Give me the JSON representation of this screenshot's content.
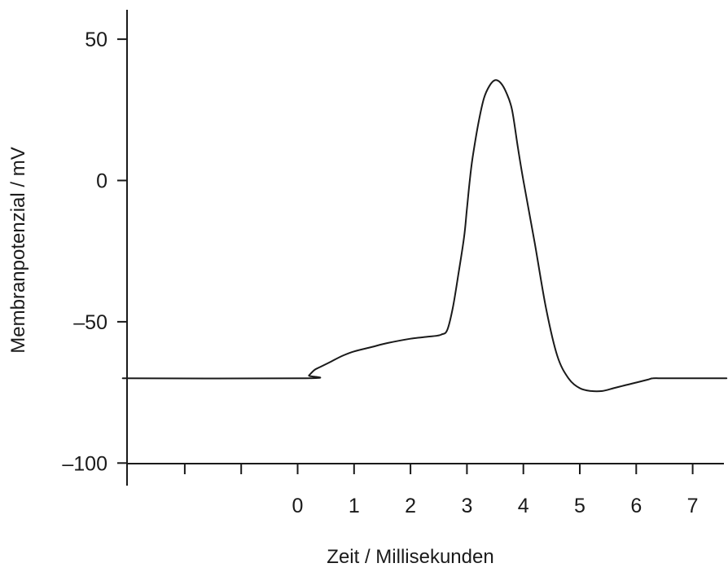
{
  "chart_data": {
    "type": "line",
    "title": "",
    "xlabel": "Zeit / Millisekunden",
    "ylabel": "Membranpotenzial / mV",
    "xlim": [
      -3.1,
      7.6
    ],
    "ylim": [
      -100,
      60
    ],
    "grid": false,
    "legend": "none",
    "x_ticks": [
      -2,
      -1,
      0,
      1,
      2,
      3,
      4,
      5,
      6,
      7
    ],
    "x_tick_labels": [
      "",
      "",
      "0",
      "1",
      "2",
      "3",
      "4",
      "5",
      "6",
      "7"
    ],
    "y_ticks": [
      50,
      0,
      -50,
      -100
    ],
    "y_tick_labels": [
      "50",
      "0",
      "–50",
      "–100"
    ],
    "series": [
      {
        "x": [
          -3.1,
          0.15,
          0.2,
          0.3,
          0.4,
          0.6,
          0.8,
          1.0,
          1.3,
          1.6,
          2.0,
          2.3,
          2.45,
          2.55,
          2.65,
          2.75,
          2.85,
          2.95,
          3.0,
          3.05,
          3.1,
          3.2,
          3.3,
          3.4,
          3.5,
          3.6,
          3.7,
          3.8,
          3.9,
          4.0,
          4.2,
          4.4,
          4.6,
          4.8,
          5.0,
          5.2,
          5.4,
          5.6,
          5.8,
          6.0,
          6.2,
          6.3,
          6.5,
          7.0,
          7.6
        ],
        "y": [
          -70,
          -70,
          -69,
          -67,
          -66,
          -64,
          -62,
          -60.5,
          -59,
          -57.5,
          -56,
          -55.3,
          -55,
          -54.5,
          -53,
          -45,
          -33,
          -20,
          -10,
          0,
          8,
          20,
          29,
          33.5,
          35.5,
          34.5,
          31,
          25,
          12,
          0,
          -22,
          -45,
          -62,
          -70,
          -73.5,
          -74.5,
          -74.5,
          -73.5,
          -72.5,
          -71.5,
          -70.5,
          -70,
          -70,
          -70,
          -70
        ]
      }
    ]
  }
}
